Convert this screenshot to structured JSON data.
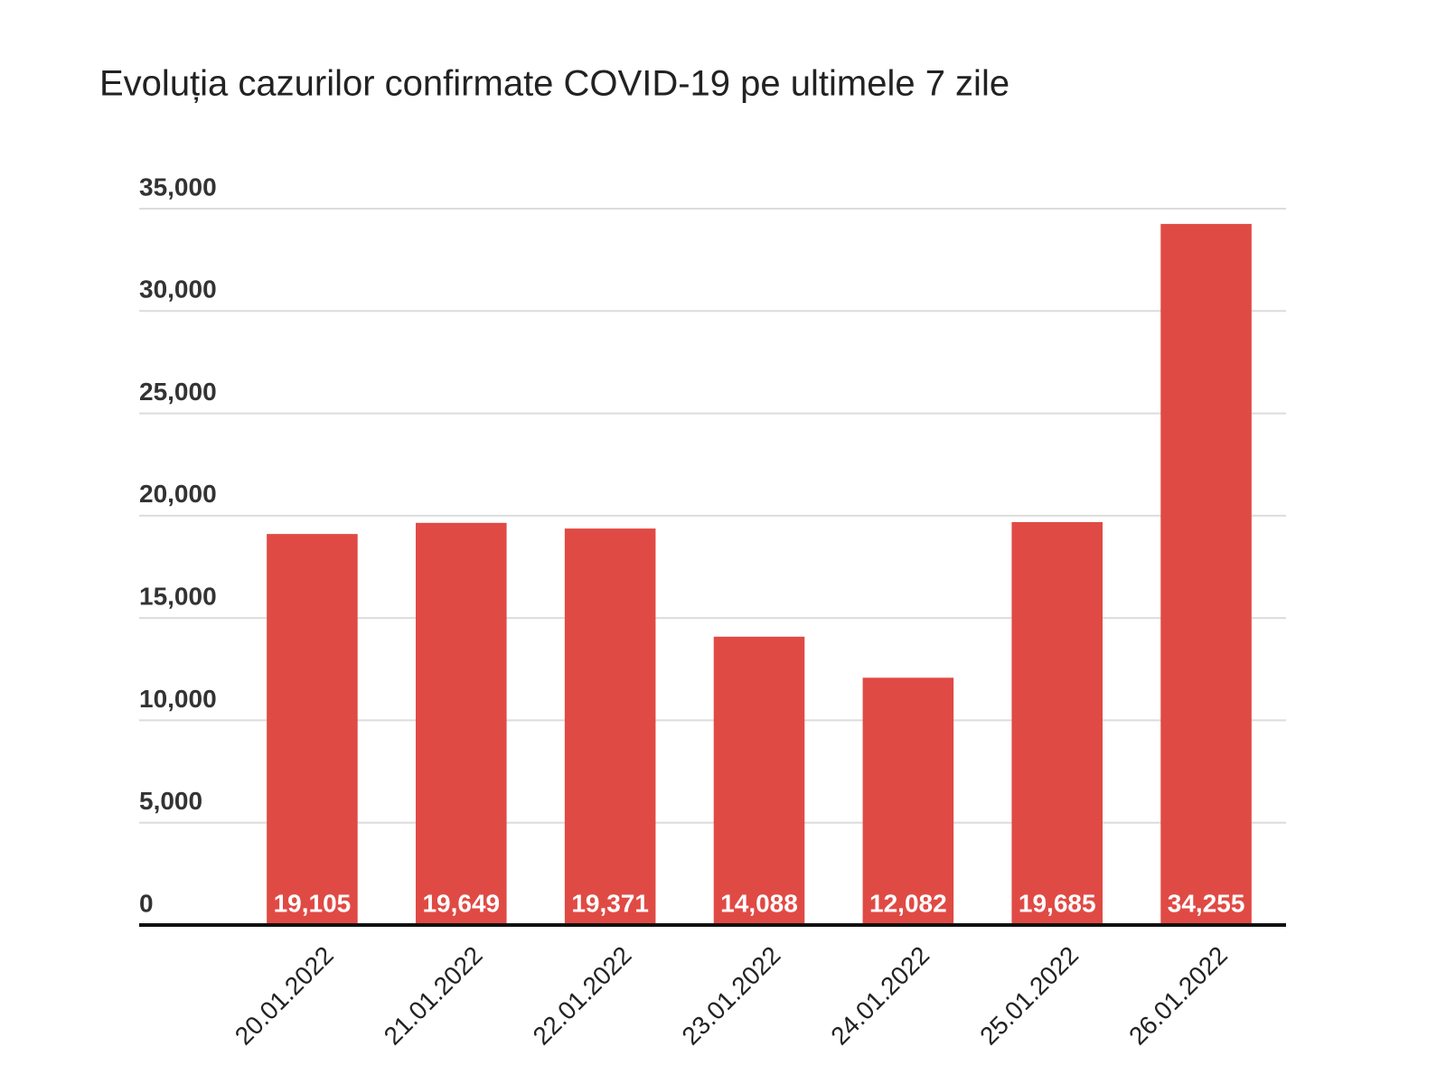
{
  "chart_data": {
    "type": "bar",
    "title": "Evoluția cazurilor confirmate COVID-19 pe ultimele 7 zile",
    "categories": [
      "20.01.2022",
      "21.01.2022",
      "22.01.2022",
      "23.01.2022",
      "24.01.2022",
      "25.01.2022",
      "26.01.2022"
    ],
    "values": [
      19105,
      19649,
      19371,
      14088,
      12082,
      19685,
      34255
    ],
    "value_labels": [
      "19,105",
      "19,649",
      "19,371",
      "14,088",
      "12,082",
      "19,685",
      "34,255"
    ],
    "color": "#e04a44",
    "ylim": [
      0,
      35000
    ],
    "yticks": [
      0,
      {
        "value": 5000,
        "label": "5,000"
      },
      {
        "value": 10000,
        "label": "10,000"
      },
      {
        "value": 15000,
        "label": "15,000"
      },
      {
        "value": 20000,
        "label": "20,000"
      },
      {
        "value": 25000,
        "label": "25,000"
      },
      {
        "value": 30000,
        "label": "30,000"
      },
      {
        "value": 35000,
        "label": "35,000"
      }
    ],
    "grid": true
  }
}
